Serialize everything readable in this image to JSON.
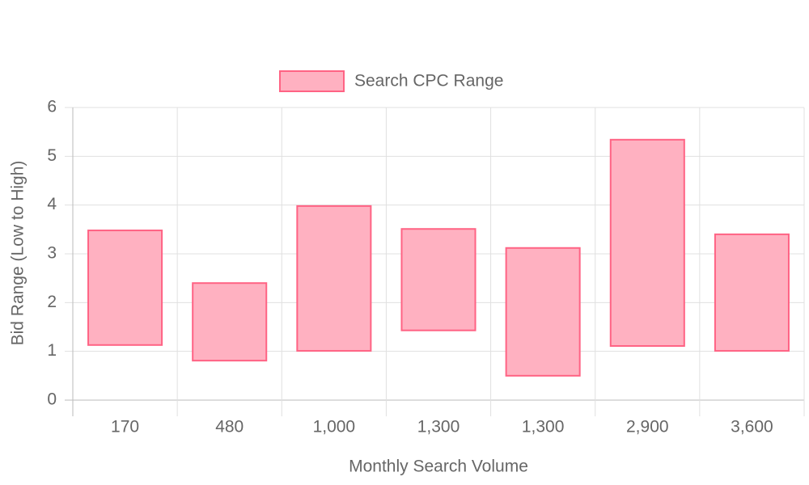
{
  "chart_data": {
    "type": "floating-bar",
    "x_label": "Monthly Search Volume",
    "y_label": "Bid Range (Low to High)",
    "categories": [
      "170",
      "480",
      "1,000",
      "1,300",
      "1,300",
      "2,900",
      "3,600"
    ],
    "series": [
      {
        "name": "Search CPC Range",
        "color": "#ff6384",
        "fill": "#ffb1c1",
        "values": [
          [
            1.13,
            3.48
          ],
          [
            0.81,
            2.4
          ],
          [
            1.01,
            3.98
          ],
          [
            1.43,
            3.51
          ],
          [
            0.5,
            3.12
          ],
          [
            1.11,
            5.34
          ],
          [
            1.01,
            3.4
          ]
        ]
      }
    ],
    "ylim": [
      0,
      6
    ],
    "yticks": [
      0,
      1,
      2,
      3,
      4,
      5,
      6
    ],
    "grid": true,
    "legend": "top"
  }
}
